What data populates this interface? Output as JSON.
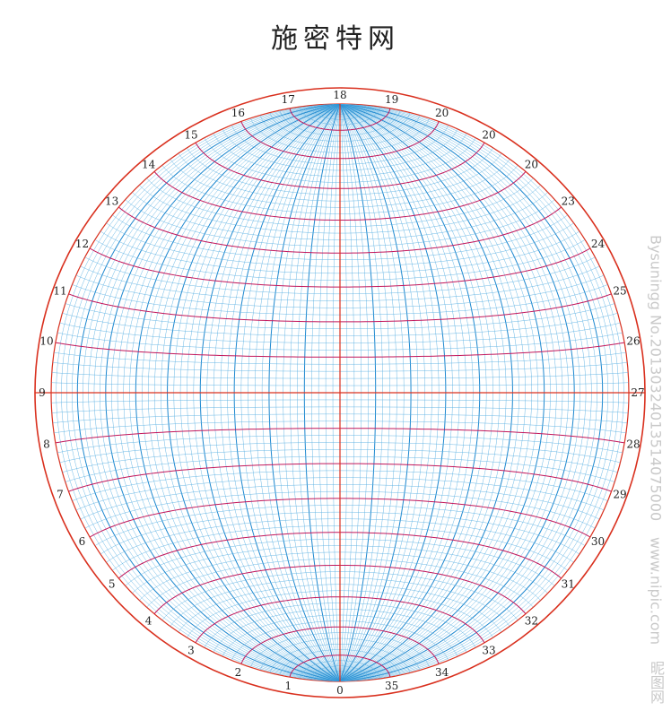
{
  "title": "施密特网",
  "watermark": {
    "brand": "昵图网",
    "site": "www.nipic.com",
    "credit": "Bysuningg No.20130324013514075000"
  },
  "net": {
    "outer_ring_color": "#d9301e",
    "great_circle_color": "#1e88cf",
    "small_circle_color": "#c2175b",
    "minor_grid_color": "#5ab0e2",
    "tick_labels": [
      "0",
      "1",
      "2",
      "3",
      "4",
      "5",
      "6",
      "7",
      "8",
      "9",
      "10",
      "11",
      "12",
      "13",
      "14",
      "15",
      "16",
      "17",
      "18",
      "19",
      "20",
      "20",
      "20",
      "23",
      "24",
      "25",
      "26",
      "27",
      "28",
      "29",
      "30",
      "31",
      "32",
      "33",
      "34",
      "35"
    ]
  }
}
